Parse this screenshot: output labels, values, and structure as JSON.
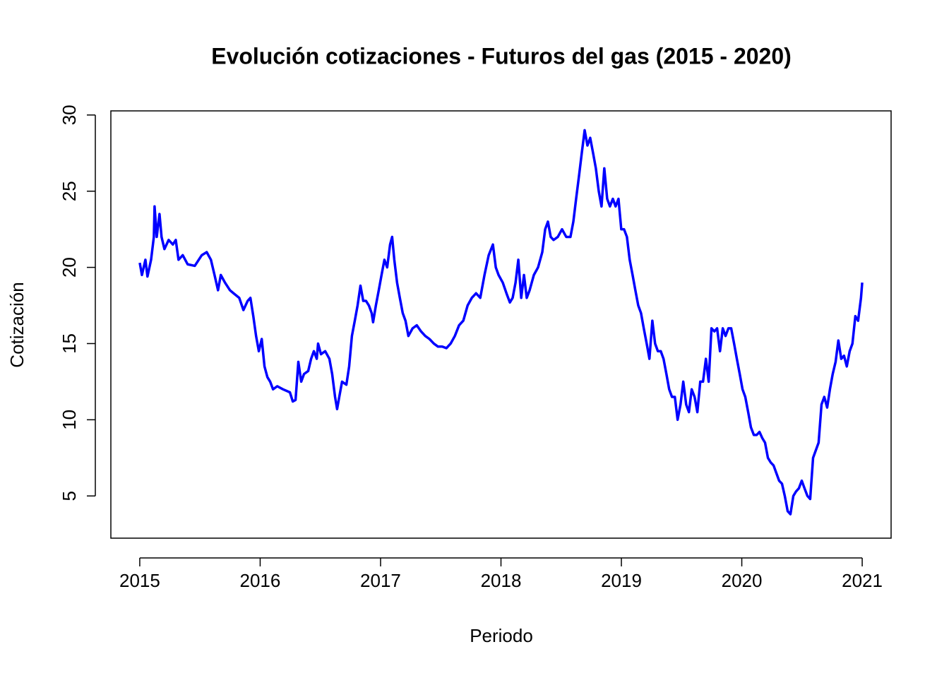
{
  "chart_data": {
    "type": "line",
    "title": "Evolución cotizaciones - Futuros del gas (2015 - 2020)",
    "x_label": "Periodo",
    "y_label": "Cotización",
    "xlim": [
      2014.76,
      2021.24
    ],
    "xticks": [
      2015,
      2016,
      2017,
      2018,
      2019,
      2020,
      2021
    ],
    "ylim": [
      2.23,
      30.27
    ],
    "yticks": [
      5,
      10,
      15,
      20,
      25,
      30
    ],
    "series": [
      {
        "color": "#0000ff",
        "x": [
          2015.0,
          2015.018,
          2015.047,
          2015.064,
          2015.094,
          2015.117,
          2015.123,
          2015.141,
          2015.164,
          2015.181,
          2015.205,
          2015.24,
          2015.275,
          2015.299,
          2015.322,
          2015.357,
          2015.398,
          2015.457,
          2015.515,
          2015.556,
          2015.591,
          2015.621,
          2015.65,
          2015.673,
          2015.708,
          2015.749,
          2015.779,
          2015.826,
          2015.861,
          2015.896,
          2015.919,
          2015.943,
          2015.966,
          2015.989,
          2016.013,
          2016.036,
          2016.06,
          2016.083,
          2016.107,
          2016.142,
          2016.189,
          2016.247,
          2016.271,
          2016.294,
          2016.317,
          2016.341,
          2016.364,
          2016.399,
          2016.423,
          2016.446,
          2016.47,
          2016.481,
          2016.505,
          2016.54,
          2016.575,
          2016.598,
          2016.622,
          2016.639,
          2016.657,
          2016.68,
          2016.716,
          2016.739,
          2016.762,
          2016.786,
          2016.809,
          2016.833,
          2016.856,
          2016.879,
          2016.903,
          2016.926,
          2016.938,
          2016.961,
          2016.985,
          2017.008,
          2017.032,
          2017.055,
          2017.079,
          2017.096,
          2017.114,
          2017.137,
          2017.16,
          2017.184,
          2017.207,
          2017.231,
          2017.266,
          2017.301,
          2017.336,
          2017.371,
          2017.406,
          2017.442,
          2017.477,
          2017.512,
          2017.547,
          2017.582,
          2017.617,
          2017.652,
          2017.687,
          2017.723,
          2017.758,
          2017.793,
          2017.828,
          2017.863,
          2017.898,
          2017.933,
          2017.957,
          2017.98,
          2018.015,
          2018.05,
          2018.074,
          2018.097,
          2018.121,
          2018.144,
          2018.168,
          2018.191,
          2018.214,
          2018.238,
          2018.273,
          2018.308,
          2018.343,
          2018.367,
          2018.39,
          2018.413,
          2018.437,
          2018.472,
          2018.507,
          2018.542,
          2018.577,
          2018.601,
          2018.624,
          2018.648,
          2018.671,
          2018.695,
          2018.718,
          2018.741,
          2018.765,
          2018.788,
          2018.812,
          2018.835,
          2018.858,
          2018.882,
          2018.905,
          2018.929,
          2018.952,
          2018.976,
          2018.999,
          2019.022,
          2019.046,
          2019.069,
          2019.093,
          2019.116,
          2019.14,
          2019.163,
          2019.186,
          2019.21,
          2019.233,
          2019.257,
          2019.28,
          2019.303,
          2019.327,
          2019.35,
          2019.374,
          2019.397,
          2019.42,
          2019.444,
          2019.467,
          2019.491,
          2019.514,
          2019.538,
          2019.561,
          2019.584,
          2019.608,
          2019.631,
          2019.655,
          2019.678,
          2019.702,
          2019.725,
          2019.748,
          2019.772,
          2019.795,
          2019.819,
          2019.842,
          2019.865,
          2019.889,
          2019.912,
          2019.936,
          2019.959,
          2019.983,
          2020.006,
          2020.029,
          2020.053,
          2020.076,
          2020.1,
          2020.123,
          2020.147,
          2020.17,
          2020.193,
          2020.217,
          2020.24,
          2020.264,
          2020.287,
          2020.31,
          2020.334,
          2020.357,
          2020.381,
          2020.404,
          2020.428,
          2020.451,
          2020.474,
          2020.498,
          2020.521,
          2020.545,
          2020.568,
          2020.592,
          2020.615,
          2020.638,
          2020.662,
          2020.685,
          2020.709,
          2020.732,
          2020.755,
          2020.779,
          2020.802,
          2020.826,
          2020.849,
          2020.872,
          2020.896,
          2020.919,
          2020.943,
          2020.966,
          2020.99,
          2021.0
        ],
        "values": [
          20.3,
          19.5,
          20.5,
          19.4,
          20.5,
          22,
          24,
          22,
          23.5,
          22,
          21.2,
          21.8,
          21.5,
          21.8,
          20.5,
          20.8,
          20.2,
          20.1,
          20.8,
          21,
          20.5,
          19.5,
          18.5,
          19.5,
          19,
          18.5,
          18.3,
          18,
          17.2,
          17.8,
          18,
          16.8,
          15.5,
          14.5,
          15.3,
          13.5,
          12.8,
          12.5,
          12,
          12.2,
          12,
          11.8,
          11.2,
          11.3,
          13.8,
          12.5,
          13,
          13.2,
          14,
          14.5,
          14,
          15,
          14.3,
          14.5,
          14,
          13,
          11.5,
          10.7,
          11.5,
          12.5,
          12.3,
          13.5,
          15.5,
          16.5,
          17.5,
          18.8,
          17.8,
          17.8,
          17.5,
          17,
          16.4,
          17.5,
          18.5,
          19.5,
          20.5,
          20,
          21.5,
          22,
          20.5,
          19,
          18,
          17,
          16.5,
          15.5,
          16,
          16.2,
          15.8,
          15.5,
          15.3,
          15,
          14.8,
          14.8,
          14.7,
          15,
          15.5,
          16.2,
          16.5,
          17.5,
          18,
          18.3,
          18,
          19.5,
          20.8,
          21.5,
          20,
          19.5,
          19,
          18.2,
          17.7,
          18,
          19,
          20.5,
          18,
          19.5,
          18,
          18.5,
          19.5,
          20,
          21,
          22.5,
          23,
          22,
          21.8,
          22,
          22.5,
          22,
          22,
          23,
          24.5,
          26,
          27.5,
          29,
          28,
          28.5,
          27.5,
          26.5,
          25,
          24,
          26.5,
          24.5,
          24,
          24.5,
          24,
          24.5,
          22.5,
          22.5,
          22,
          20.5,
          19.5,
          18.5,
          17.5,
          17,
          16,
          15,
          14,
          16.5,
          15,
          14.5,
          14.5,
          14,
          13,
          12,
          11.5,
          11.5,
          10,
          11,
          12.5,
          11,
          10.5,
          12,
          11.5,
          10.5,
          12.5,
          12.5,
          14,
          12.5,
          16,
          15.8,
          16,
          14.5,
          16,
          15.5,
          16,
          16,
          15,
          14,
          13,
          12,
          11.5,
          10.5,
          9.5,
          9,
          9,
          9.2,
          8.8,
          8.5,
          7.5,
          7.2,
          7,
          6.5,
          6,
          5.8,
          5,
          4,
          3.8,
          5,
          5.3,
          5.5,
          6,
          5.5,
          5,
          4.8,
          7.5,
          8,
          8.5,
          11,
          11.5,
          10.8,
          12,
          13,
          13.8,
          15.2,
          14,
          14.2,
          13.5,
          14.5,
          15,
          16.8,
          16.5,
          18,
          19
        ]
      }
    ]
  }
}
